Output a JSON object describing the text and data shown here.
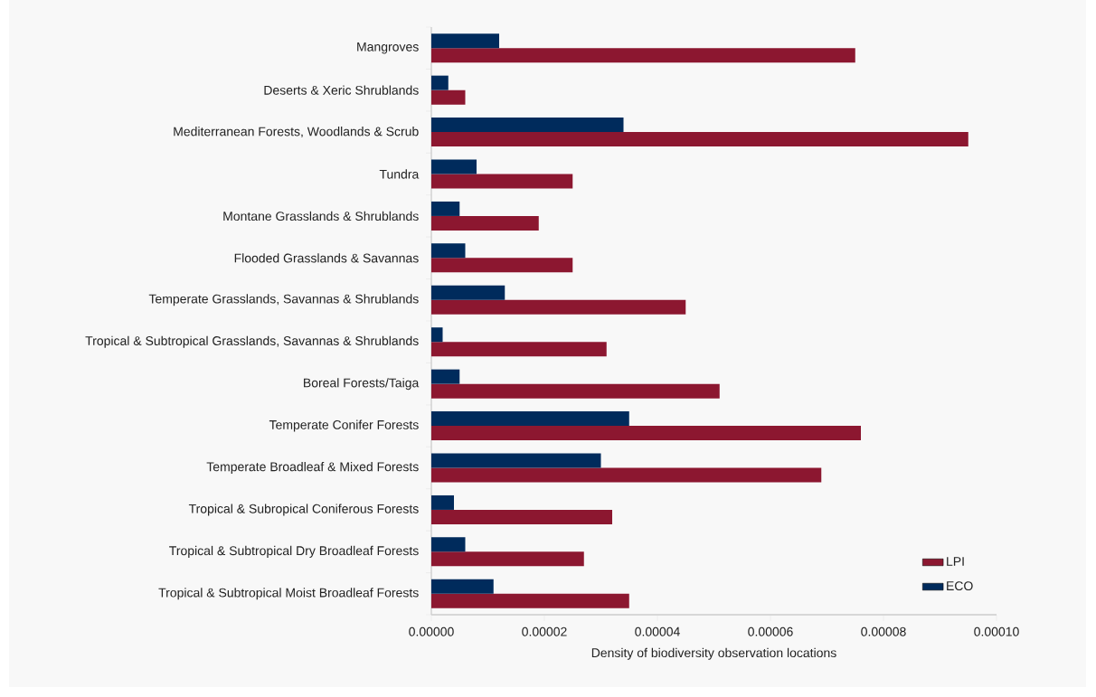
{
  "chart_data": {
    "type": "bar",
    "orientation": "horizontal",
    "xlabel": "Density of biodiversity observation locations",
    "categories": [
      "Mangroves",
      "Deserts & Xeric Shrublands",
      "Mediterranean Forests, Woodlands & Scrub",
      "Tundra",
      "Montane Grasslands & Shrublands",
      "Flooded Grasslands & Savannas",
      "Temperate Grasslands, Savannas & Shrublands",
      "Tropical & Subtropical Grasslands, Savannas & Shrublands",
      "Boreal Forests/Taiga",
      "Temperate Conifer Forests",
      "Temperate Broadleaf & Mixed Forests",
      "Tropical & Subropical Coniferous Forests",
      "Tropical & Subtropical Dry Broadleaf Forests",
      "Tropical & Subtropical Moist Broadleaf Forests"
    ],
    "series": [
      {
        "name": "LPI",
        "color": "#8c1730",
        "values": [
          7.5e-05,
          6e-06,
          9.5e-05,
          2.5e-05,
          1.9e-05,
          2.5e-05,
          4.5e-05,
          3.1e-05,
          5.1e-05,
          7.6e-05,
          6.9e-05,
          3.2e-05,
          2.7e-05,
          3.5e-05
        ]
      },
      {
        "name": "ECO",
        "color": "#002b5c",
        "values": [
          1.2e-05,
          3e-06,
          3.4e-05,
          8e-06,
          5e-06,
          6e-06,
          1.3e-05,
          2e-06,
          5e-06,
          3.5e-05,
          3e-05,
          4e-06,
          6e-06,
          1.1e-05
        ]
      }
    ],
    "xlim": [
      0,
      0.0001
    ],
    "xticks": [
      {
        "value": 0,
        "label": "0.00000"
      },
      {
        "value": 2e-05,
        "label": "0.00002"
      },
      {
        "value": 4e-05,
        "label": "0.00004"
      },
      {
        "value": 6e-05,
        "label": "0.00006"
      },
      {
        "value": 8e-05,
        "label": "0.00008"
      },
      {
        "value": 0.0001,
        "label": "0.00010"
      }
    ],
    "legend": "bottom right"
  }
}
